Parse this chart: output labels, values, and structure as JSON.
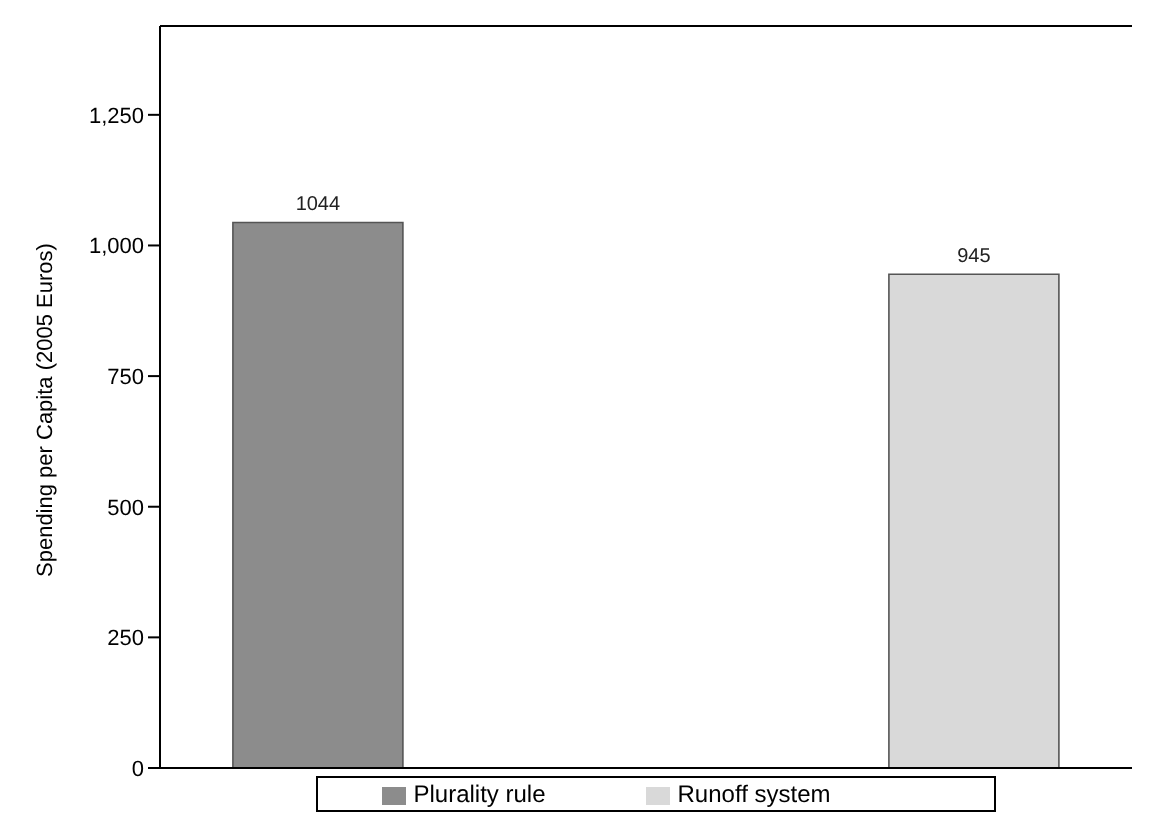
{
  "chart_data": {
    "type": "bar",
    "ylabel": "Spending per Capita (2005 Euros)",
    "categories": [
      null,
      null
    ],
    "series": [
      {
        "name": "Plurality rule",
        "color": "#8c8c8c",
        "values": [
          1044,
          null
        ]
      },
      {
        "name": "Runoff system",
        "color": "#d9d9d9",
        "values": [
          null,
          945
        ]
      }
    ],
    "ylim": [
      0,
      1420
    ],
    "yticks": [
      0,
      250,
      500,
      750,
      {
        "value": 1000,
        "label": "1,000"
      },
      {
        "value": 1250,
        "label": "1,250"
      }
    ],
    "data_labels": true,
    "grid": false,
    "legend": "bottom"
  }
}
